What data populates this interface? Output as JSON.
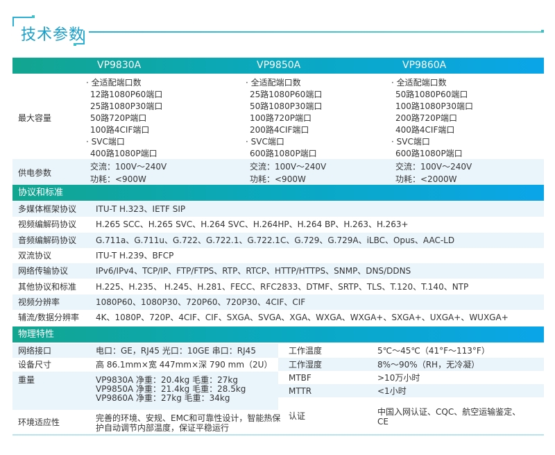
{
  "title": "技术参数",
  "models": [
    "VP9830A",
    "VP9850A",
    "VP9860A"
  ],
  "capacity": {
    "label": "最大容量",
    "columns": [
      [
        "· 全适配端口数",
        "12路1080P60端口",
        "25路1080P30端口",
        "50路720P端口",
        "100路4CIF端口",
        "· SVC端口",
        "400路1080P端口"
      ],
      [
        "· 全适配端口数",
        "25路1080P60端口",
        "50路1080P30端口",
        "100路720P端口",
        "200路4CIF端口",
        "· SVC端口",
        "600路1080P端口"
      ],
      [
        "· 全适配端口数",
        "50路1080P60端口",
        "100路1080P30端口",
        "200路720P端口",
        "400路4CIF端口",
        "· SVC端口",
        "600路1080P端口"
      ]
    ]
  },
  "power": {
    "label": "供电参数",
    "columns": [
      [
        "交流：100V～240V",
        "功耗：<900W"
      ],
      [
        "交流：100V～240V",
        "功耗：<900W"
      ],
      [
        "交流：100V～240V",
        "功耗：<2000W"
      ]
    ]
  },
  "protocols": {
    "header": "协议和标准",
    "rows": [
      {
        "label": "多媒体框架协议",
        "value": "ITU-T H.323、IETF SIP"
      },
      {
        "label": "视频编解码协议",
        "value": "H.265 SCC、H.265 SVC、H.264 SVC、H.264HP、H.264 BP、H.263、H.263+"
      },
      {
        "label": "音频编解码协议",
        "value": "G.711a、G.711u、G.722、G.722.1、G.722.1C、G.729、G.729A、iLBC、Opus、AAC-LD"
      },
      {
        "label": "双流协议",
        "value": "ITU-T H.239、BFCP"
      },
      {
        "label": "网络传输协议",
        "value": "IPv6/IPv4、TCP/IP、FTP/FTPS、RTP、RTCP、HTTP/HTTPS、SNMP、DNS/DDNS"
      },
      {
        "label": "其他协议和标准",
        "value": "H.225、H.235、 H.245、H.281、FECC、RFC2833、DTMF、SRTP、TLS、T.120、T.140、NTP"
      },
      {
        "label": "视频分辨率",
        "value": "1080P60、1080P30、720P60、720P30、4CIF、CIF"
      },
      {
        "label": "辅流/数据分辨率",
        "value": "4K、1080P、720P、4CIF、CIF、SXGA、SVGA、XGA、WXGA、WXGA+、SXGA+、UXGA+、WUXGA+"
      }
    ]
  },
  "physical": {
    "header": "物理特性",
    "left": [
      {
        "label": "网络接口",
        "lines": [
          "电口：GE，RJ45 光口：10GE   串口：RJ45"
        ]
      },
      {
        "label": "设备尺寸",
        "lines": [
          "高 86.1mm×宽 447mm×深 790 mm（2U）"
        ]
      },
      {
        "label": "重量",
        "lines": [
          "VP9830A 净重：20.4kg    毛重：27kg",
          "VP9850A 净重：21.4kg    毛重：28.5kg",
          "VP9860A 净重：27kg       毛重：34kg"
        ]
      },
      {
        "label": "环境适应性",
        "lines": [
          "完善的环境、安规、EMC和可靠性设计，智能热保",
          "护自动调节内部温度，保证平稳运行"
        ]
      }
    ],
    "right": [
      {
        "label": "工作温度",
        "lines": [
          "5℃～45℃（41°F～113°F）"
        ]
      },
      {
        "label": "工作湿度",
        "lines": [
          "8%～90%（RH，无冷凝）"
        ]
      },
      {
        "label": "MTBF",
        "lines": [
          ">10万小时"
        ]
      },
      {
        "label": "MTTR",
        "lines": [
          "<1小时"
        ]
      },
      {
        "label": "认证",
        "lines": [
          "中国入网认证、CQC、航空运输鉴定、",
          "CE"
        ]
      }
    ]
  }
}
